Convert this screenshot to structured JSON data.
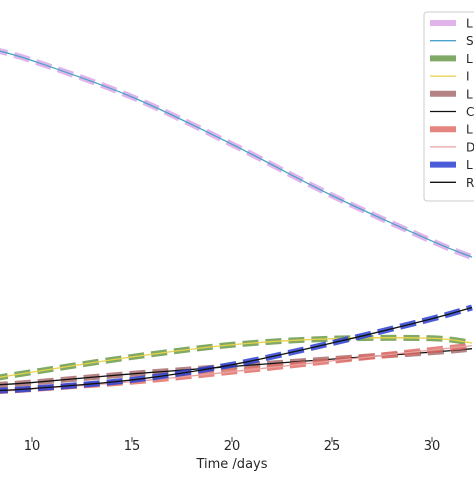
{
  "chart_data": {
    "type": "line",
    "xlabel": "Time /days",
    "ylabel": "",
    "x_ticks": [
      10,
      15,
      20,
      25,
      30
    ],
    "xlim": [
      8.4,
      32.1
    ],
    "ylim": [
      0,
      1
    ],
    "grid": false,
    "legend_placement": "top-right",
    "series": [
      {
        "name": "L",
        "style": "dashed-thick",
        "color": "#dba6e8",
        "x": [
          8,
          10,
          15,
          20,
          25,
          30,
          32
        ],
        "y": [
          0.905,
          0.879,
          0.795,
          0.686,
          0.568,
          0.463,
          0.426
        ]
      },
      {
        "name": "S",
        "style": "solid-thin",
        "color": "#4aa3c8",
        "x": [
          8,
          10,
          15,
          20,
          25,
          30,
          32
        ],
        "y": [
          0.905,
          0.879,
          0.795,
          0.686,
          0.568,
          0.463,
          0.426
        ]
      },
      {
        "name": "L",
        "style": "dashed-thick",
        "color": "#6a9a4a",
        "x": [
          8,
          10,
          15,
          20,
          25,
          30,
          32
        ],
        "y": [
          0.146,
          0.161,
          0.196,
          0.224,
          0.238,
          0.239,
          0.228
        ]
      },
      {
        "name": "I",
        "style": "solid-thin",
        "color": "#e8d24a",
        "x": [
          8,
          10,
          15,
          20,
          25,
          30,
          32
        ],
        "y": [
          0.146,
          0.161,
          0.196,
          0.224,
          0.238,
          0.239,
          0.228
        ]
      },
      {
        "name": "L",
        "style": "dashed-thick",
        "color": "#a86d6d",
        "x": [
          8,
          10,
          15,
          20,
          25,
          30,
          32
        ],
        "y": [
          0.131,
          0.137,
          0.157,
          0.174,
          0.191,
          0.207,
          0.215
        ]
      },
      {
        "name": "C",
        "style": "solid-thin",
        "color": "#111111",
        "x": [
          8,
          10,
          15,
          20,
          25,
          30,
          32
        ],
        "y": [
          0.131,
          0.137,
          0.157,
          0.174,
          0.191,
          0.207,
          0.215
        ]
      },
      {
        "name": "L",
        "style": "dashed-thick",
        "color": "#e07068",
        "x": [
          8,
          10,
          15,
          20,
          25,
          30,
          32
        ],
        "y": [
          0.116,
          0.122,
          0.139,
          0.162,
          0.187,
          0.212,
          0.222
        ]
      },
      {
        "name": "D",
        "style": "solid-thin",
        "color": "#e8a0a0",
        "x": [
          8,
          10,
          15,
          20,
          25,
          30,
          32
        ],
        "y": [
          0.116,
          0.122,
          0.139,
          0.162,
          0.187,
          0.212,
          0.222
        ]
      },
      {
        "name": "L",
        "style": "dashed-thick",
        "color": "#2a3fd0",
        "x": [
          8,
          10,
          15,
          20,
          25,
          30,
          32
        ],
        "y": [
          0.118,
          0.123,
          0.143,
          0.178,
          0.228,
          0.284,
          0.31
        ]
      },
      {
        "name": "R",
        "style": "solid-thin",
        "color": "#111111",
        "x": [
          8,
          10,
          15,
          20,
          25,
          30,
          32
        ],
        "y": [
          0.118,
          0.123,
          0.143,
          0.178,
          0.228,
          0.284,
          0.31
        ]
      }
    ]
  }
}
